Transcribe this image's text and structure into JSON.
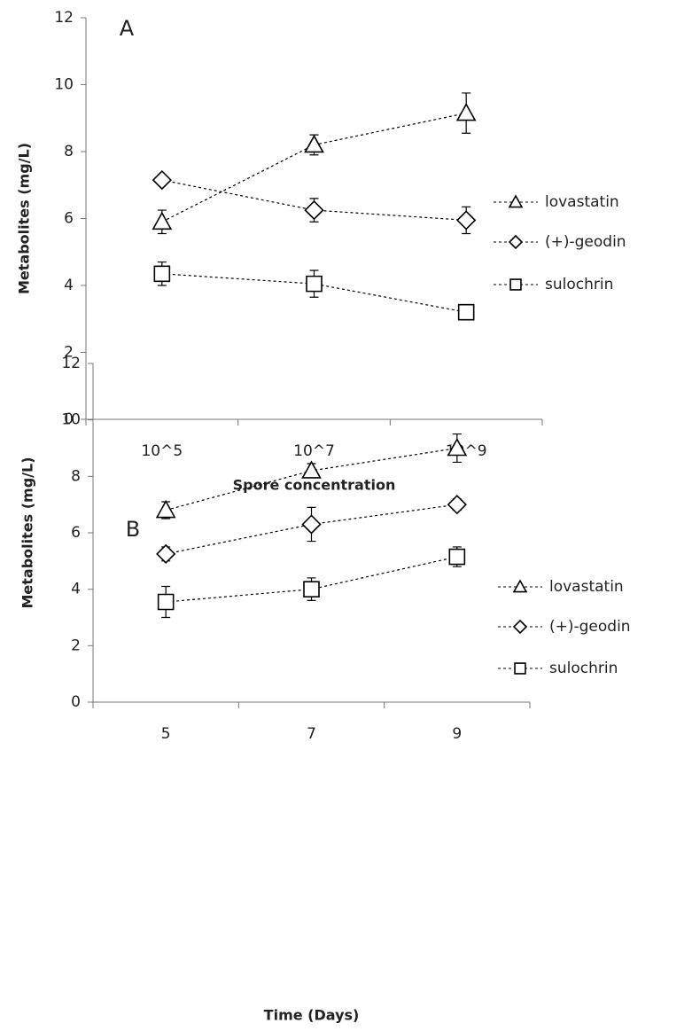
{
  "chart_data": [
    {
      "type": "line",
      "annotation": "A",
      "x_label": "Spore concentration",
      "y_label": "Metabolites (mg/L)",
      "categories": [
        "10^5",
        "10^7",
        "10^9"
      ],
      "series": [
        {
          "name": "lovastatin",
          "color": "#000000",
          "marker": "triangle",
          "values": [
            5.9,
            8.2,
            9.15
          ],
          "errors": [
            0.35,
            0.3,
            0.6
          ]
        },
        {
          "name": "(+)-geodin",
          "color": "#000000",
          "marker": "diamond",
          "values": [
            7.15,
            6.25,
            5.95
          ],
          "errors": [
            0.15,
            0.35,
            0.4
          ]
        },
        {
          "name": "sulochrin",
          "color": "#000000",
          "marker": "square",
          "values": [
            4.35,
            4.05,
            3.2
          ],
          "errors": [
            0.35,
            0.4,
            0.15
          ]
        }
      ],
      "ylim": [
        0,
        12
      ],
      "yticks": [
        0,
        2,
        4,
        6,
        8,
        10,
        12
      ],
      "grid": false,
      "legend": "right"
    },
    {
      "type": "line",
      "annotation": "B",
      "x_label": "Time (Days)",
      "y_label": "Metabolites (mg/L)",
      "categories": [
        "5",
        "7",
        "9"
      ],
      "series": [
        {
          "name": "lovastatin",
          "color": "#000000",
          "marker": "triangle",
          "values": [
            6.8,
            8.2,
            9.0
          ],
          "errors": [
            0.3,
            0.25,
            0.5
          ]
        },
        {
          "name": "(+)-geodin",
          "color": "#000000",
          "marker": "diamond",
          "values": [
            5.25,
            6.3,
            7.0
          ],
          "errors": [
            0.25,
            0.6,
            0.2
          ]
        },
        {
          "name": "sulochrin",
          "color": "#000000",
          "marker": "square",
          "values": [
            3.55,
            4.0,
            5.15
          ],
          "errors": [
            0.55,
            0.4,
            0.35
          ]
        }
      ],
      "ylim": [
        0,
        12
      ],
      "yticks": [
        0,
        2,
        4,
        6,
        8,
        10,
        12
      ],
      "grid": false,
      "legend": "right"
    }
  ]
}
